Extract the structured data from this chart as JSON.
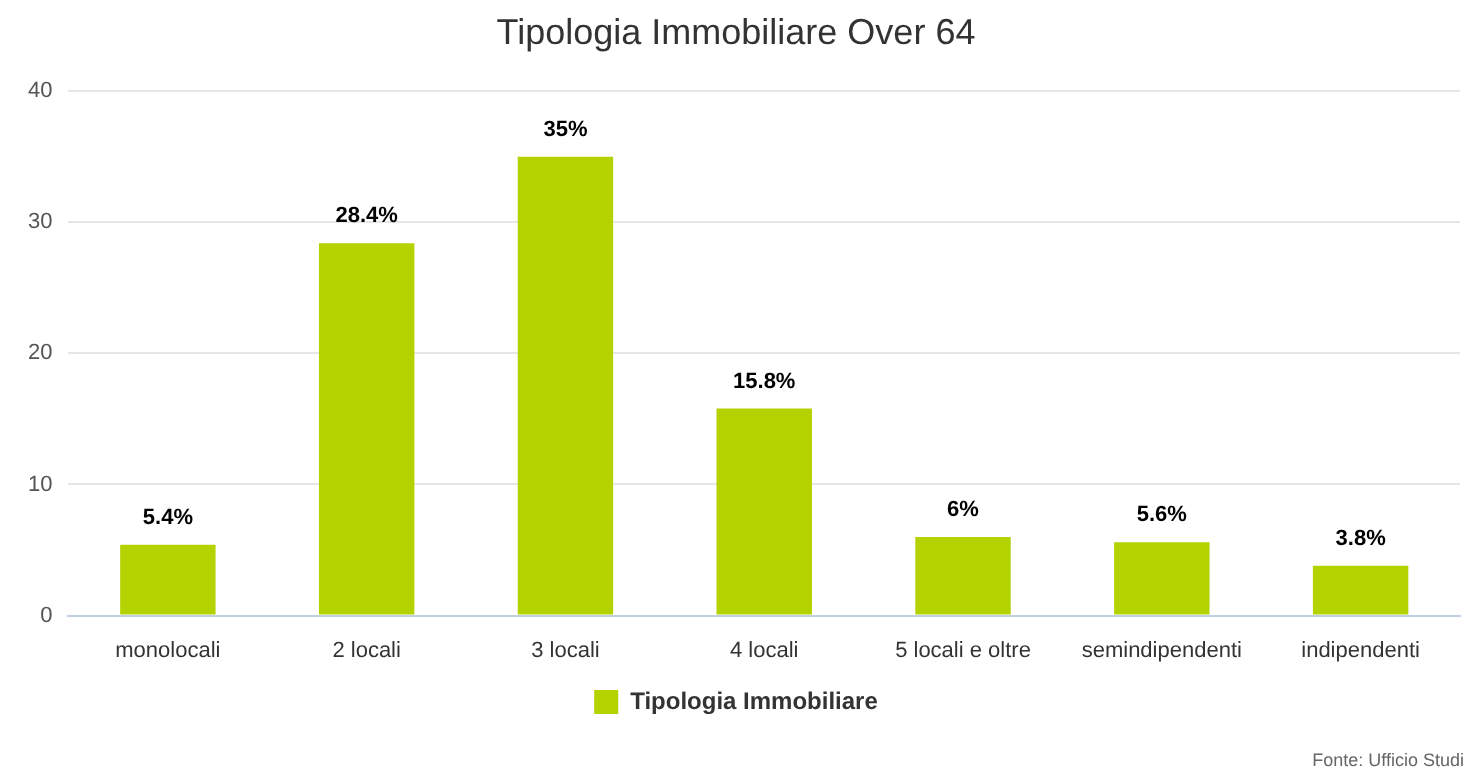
{
  "chart_data": {
    "type": "bar",
    "title": "Tipologia Immobiliare Over 64",
    "categories": [
      "monolocali",
      "2 locali",
      "3 locali",
      "4 locali",
      "5 locali e oltre",
      "semindipendenti",
      "indipendenti"
    ],
    "series": [
      {
        "name": "Tipologia Immobiliare",
        "color": "#b3d200",
        "values": [
          5.4,
          28.4,
          35,
          15.8,
          6,
          5.6,
          3.8
        ],
        "value_labels": [
          "5.4%",
          "28.4%",
          "35%",
          "15.8%",
          "6%",
          "5.6%",
          "3.8%"
        ]
      }
    ],
    "ylim": [
      0,
      40
    ],
    "yticks": [
      0,
      10,
      20,
      30,
      40
    ],
    "grid": "y",
    "legend": "bottom",
    "annotations": [
      "Fonte: Ufficio Studi"
    ]
  }
}
